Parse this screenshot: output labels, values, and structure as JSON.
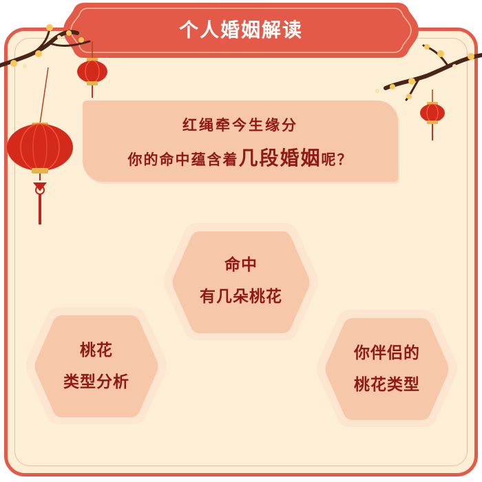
{
  "title": "个人婚姻解读",
  "question": {
    "line1": "红绳牵今生缘分",
    "line2_prefix": "你的命中蕴含着",
    "line2_emphasis": "几段婚姻",
    "line2_suffix": "呢？"
  },
  "hexagons": [
    {
      "line1": "命中",
      "line2": "有几朵桃花"
    },
    {
      "line1": "桃花",
      "line2": "类型分析"
    },
    {
      "line1": "你伴侣的",
      "line2": "桃花类型"
    }
  ],
  "colors": {
    "frame_red": "#e35a48",
    "panel_cream": "#fdefd6",
    "box_peach": "#f6c7a8",
    "text_dark_red": "#8f1a14",
    "lantern_red": "#d42a1c"
  }
}
